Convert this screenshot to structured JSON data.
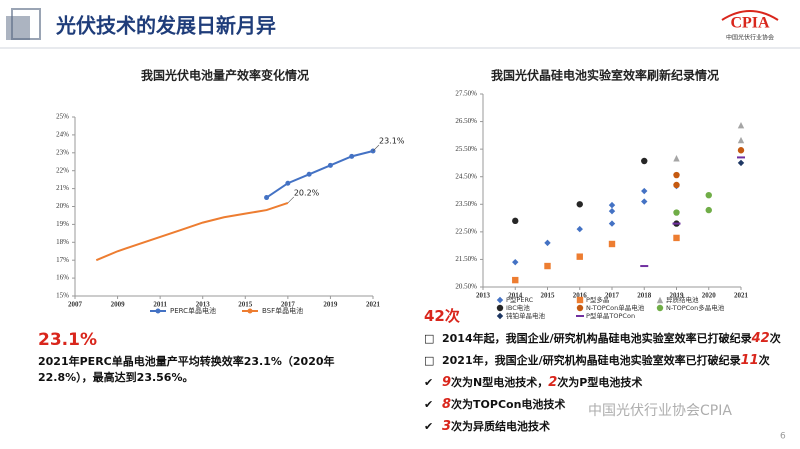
{
  "header": {
    "title": "光伏技术的发展日新月异",
    "logo_text": "CPIA",
    "logo_subtext": "中国光伏行业协会"
  },
  "chart_data": [
    {
      "type": "line",
      "title": "我国光伏电池量产效率变化情况",
      "xlim": [
        2007,
        2021
      ],
      "xticks": [
        2007,
        2009,
        2011,
        2013,
        2015,
        2017,
        2019,
        2021
      ],
      "ylim": [
        15,
        25
      ],
      "yticks": [
        {
          "value": 15,
          "label": "15%"
        },
        {
          "value": 16,
          "label": "16%"
        },
        {
          "value": 17,
          "label": "17%"
        },
        {
          "value": 18,
          "label": "18%"
        },
        {
          "value": 19,
          "label": "19%"
        },
        {
          "value": 20,
          "label": "20%"
        },
        {
          "value": 21,
          "label": "21%"
        },
        {
          "value": 22,
          "label": "22%"
        },
        {
          "value": 23,
          "label": "23%"
        },
        {
          "value": 24,
          "label": "24%"
        },
        {
          "value": 25,
          "label": "25%"
        }
      ],
      "series": [
        {
          "name": "PERC单晶电池",
          "color": "#4472c4",
          "x": [
            2016,
            2017,
            2018,
            2019,
            2020,
            2021
          ],
          "values": [
            20.5,
            21.3,
            21.8,
            22.3,
            22.8,
            23.1
          ],
          "value_labels": [
            null,
            null,
            null,
            null,
            null,
            "23.1%"
          ]
        },
        {
          "name": "BSF单晶电池",
          "color": "#ed7d31",
          "x": [
            2008,
            2009,
            2010,
            2011,
            2012,
            2013,
            2014,
            2015,
            2016,
            2017
          ],
          "values": [
            17.0,
            17.5,
            17.9,
            18.3,
            18.7,
            19.1,
            19.4,
            19.6,
            19.8,
            20.2
          ],
          "value_labels": [
            null,
            null,
            null,
            null,
            null,
            null,
            null,
            null,
            null,
            "20.2%"
          ]
        }
      ]
    },
    {
      "type": "scatter",
      "title": "我国光伏晶硅电池实验室效率刷新纪录情况",
      "xlim": [
        2013,
        2021
      ],
      "xticks": [
        2013,
        2014,
        2015,
        2016,
        2017,
        2018,
        2019,
        2020,
        2021
      ],
      "ylim": [
        20.5,
        27.5
      ],
      "yticks": [
        {
          "value": 20.5,
          "label": "20.50%"
        },
        {
          "value": 21.5,
          "label": "21.50%"
        },
        {
          "value": 22.5,
          "label": "22.50%"
        },
        {
          "value": 23.5,
          "label": "23.50%"
        },
        {
          "value": 24.5,
          "label": "24.50%"
        },
        {
          "value": 25.5,
          "label": "25.50%"
        },
        {
          "value": 26.5,
          "label": "26.50%"
        },
        {
          "value": 27.5,
          "label": "27.50%"
        }
      ],
      "series": [
        {
          "name": "P型PERC",
          "color": "#4472c4",
          "marker": "diamond",
          "x": [
            2014,
            2015,
            2016,
            2017,
            2017,
            2017,
            2018,
            2018,
            2019
          ],
          "values": [
            21.4,
            22.1,
            22.6,
            22.8,
            23.25,
            23.47,
            23.6,
            23.98,
            24.16
          ]
        },
        {
          "name": "P型多晶",
          "color": "#ed7d31",
          "marker": "square",
          "x": [
            2014,
            2015,
            2016,
            2017,
            2019
          ],
          "values": [
            20.75,
            21.26,
            21.6,
            22.06,
            22.28
          ]
        },
        {
          "name": "异质结电池",
          "color": "#a5a5a5",
          "marker": "triangle",
          "x": [
            2019,
            2021,
            2021
          ],
          "values": [
            25.17,
            25.83,
            26.37
          ]
        },
        {
          "name": "IBC电池",
          "color": "#262626",
          "marker": "circle",
          "x": [
            2014,
            2016,
            2018,
            2019
          ],
          "values": [
            22.9,
            23.5,
            25.07,
            22.8
          ]
        },
        {
          "name": "N-TOPCon单晶电池",
          "color": "#c55a11",
          "marker": "circle",
          "x": [
            2019,
            2019,
            2021
          ],
          "values": [
            24.2,
            24.56,
            25.46
          ]
        },
        {
          "name": "N-TOPCon多晶电池",
          "color": "#70ad47",
          "marker": "circle",
          "x": [
            2019,
            2020,
            2020
          ],
          "values": [
            23.2,
            23.29,
            23.83
          ]
        },
        {
          "name": "钝铂单晶电池",
          "color": "#1f3864",
          "marker": "diamond",
          "x": [
            2021
          ],
          "values": [
            25.0
          ]
        },
        {
          "name": "P型单晶TOPCon",
          "color": "#7030a0",
          "marker": "dash",
          "x": [
            2018,
            2019,
            2021
          ],
          "values": [
            21.26,
            22.8,
            25.2
          ]
        }
      ]
    }
  ],
  "left_note": {
    "headline": "23.1%",
    "text": "2021年PERC单晶电池量产平均转换效率23.1%（2020年22.8%），最高达到23.56%。"
  },
  "right_note": {
    "headline": "42次",
    "bullets": [
      {
        "symbol": "□",
        "segments": [
          {
            "text": "2014年起，我国企业/研究机构晶硅电池实验室效率已打破纪录",
            "highlight": false
          },
          {
            "text": "42",
            "highlight": true
          },
          {
            "text": "次",
            "highlight": false
          }
        ]
      },
      {
        "symbol": "□",
        "segments": [
          {
            "text": "2021年，我国企业/研究机构晶硅电池实验室效率已打破纪录",
            "highlight": false
          },
          {
            "text": "11",
            "highlight": true
          },
          {
            "text": "次",
            "highlight": false
          }
        ]
      },
      {
        "symbol": "✔",
        "segments": [
          {
            "text": "9",
            "highlight": true
          },
          {
            "text": "次为N型电池技术，",
            "highlight": false
          },
          {
            "text": "2",
            "highlight": true
          },
          {
            "text": "次为P型电池技术",
            "highlight": false
          }
        ]
      },
      {
        "symbol": "✔",
        "segments": [
          {
            "text": "8",
            "highlight": true
          },
          {
            "text": "次为TOPCon电池技术",
            "highlight": false
          }
        ]
      },
      {
        "symbol": "✔",
        "segments": [
          {
            "text": "3",
            "highlight": true
          },
          {
            "text": "次为异质结电池技术",
            "highlight": false
          }
        ]
      }
    ]
  },
  "footer": {
    "watermark": "中国光伏行业协会CPIA",
    "page_number": "6"
  }
}
